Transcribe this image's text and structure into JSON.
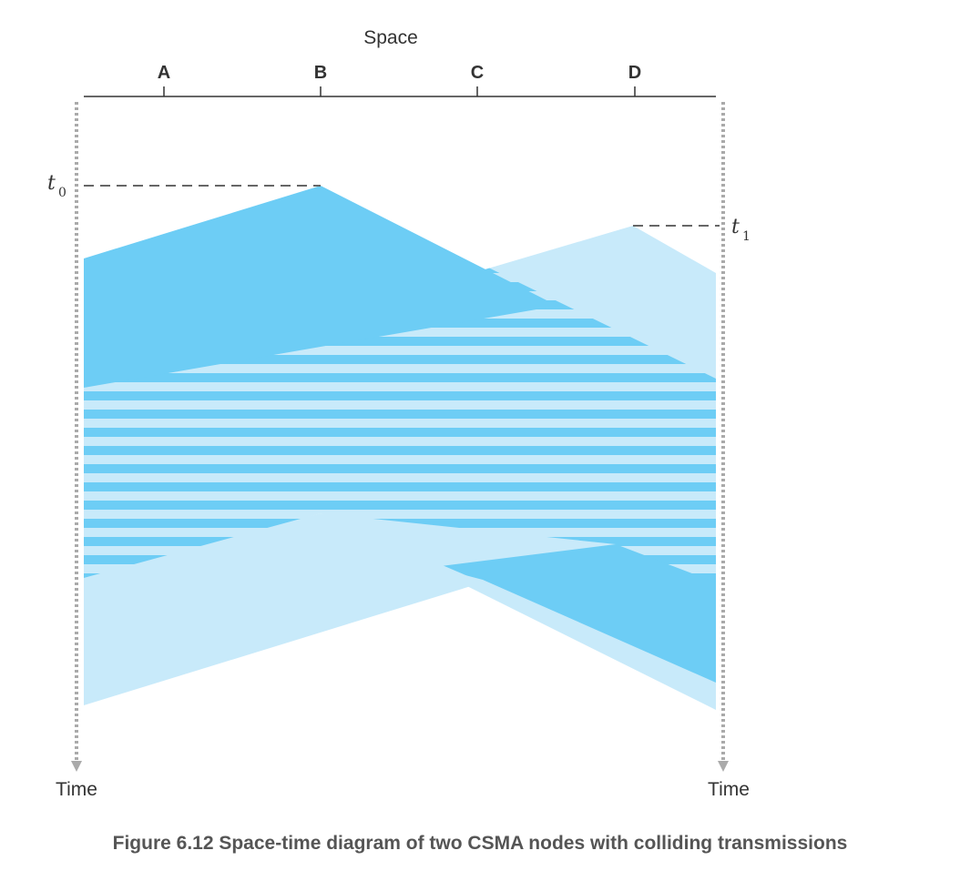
{
  "axis": {
    "space_label": "Space",
    "nodes": [
      "A",
      "B",
      "C",
      "D"
    ],
    "time_label_left": "Time",
    "time_label_right": "Time"
  },
  "events": {
    "t0": {
      "letter": "t",
      "sub": "0"
    },
    "t1": {
      "letter": "t",
      "sub": "1"
    }
  },
  "colors": {
    "dark_wedge": "#6dcdf5",
    "light_wedge": "#c8eafa",
    "axis_line": "#333333",
    "dotted_line": "#aaaaaa",
    "dashed_line": "#666666"
  },
  "caption": "Figure 6.12 Space-time diagram of two CSMA nodes with colliding transmissions"
}
